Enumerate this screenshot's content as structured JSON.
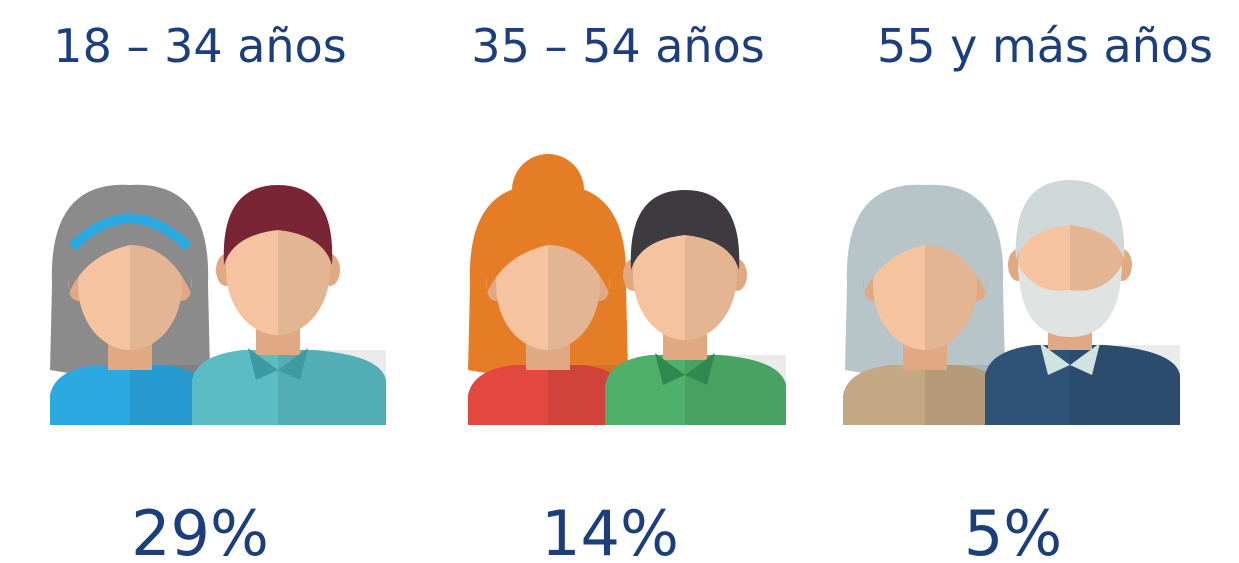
{
  "groups": [
    {
      "label": "18 – 34 años",
      "percent": "29%"
    },
    {
      "label": "35 – 54 años",
      "percent": "14%"
    },
    {
      "label": "55 y más años",
      "percent": "5%"
    }
  ]
}
